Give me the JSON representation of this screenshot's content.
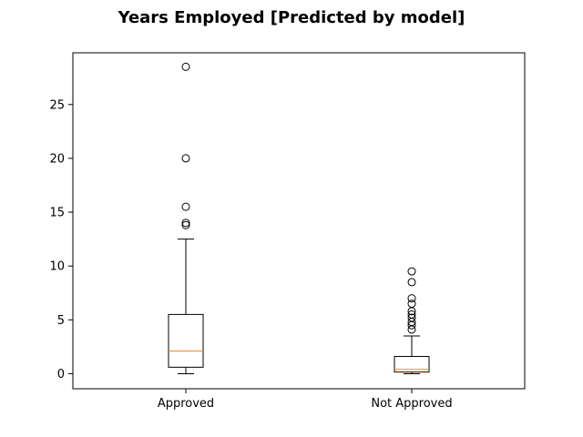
{
  "chart_data": {
    "type": "box",
    "title": "Years Employed [Predicted by model]",
    "xlabel": "",
    "ylabel": "",
    "categories": [
      "Approved",
      "Not Approved"
    ],
    "ylim": [
      -1.4,
      29.8
    ],
    "yticks": [
      0,
      5,
      10,
      15,
      20,
      25
    ],
    "grid": false,
    "series": [
      {
        "category": "Approved",
        "whisker_low": 0.0,
        "q1": 0.6,
        "median": 2.1,
        "q3": 5.5,
        "whisker_high": 12.5,
        "outliers": [
          28.5,
          20.0,
          15.5,
          14.0,
          13.8
        ]
      },
      {
        "category": "Not Approved",
        "whisker_low": 0.0,
        "q1": 0.15,
        "median": 0.4,
        "q3": 1.6,
        "whisker_high": 3.5,
        "outliers": [
          9.5,
          8.5,
          7.0,
          6.5,
          5.8,
          5.5,
          5.2,
          4.8,
          4.5,
          4.1
        ]
      }
    ],
    "colors": {
      "box": "#000000",
      "median": "#ff7f0e",
      "outlier": "#000000"
    }
  }
}
